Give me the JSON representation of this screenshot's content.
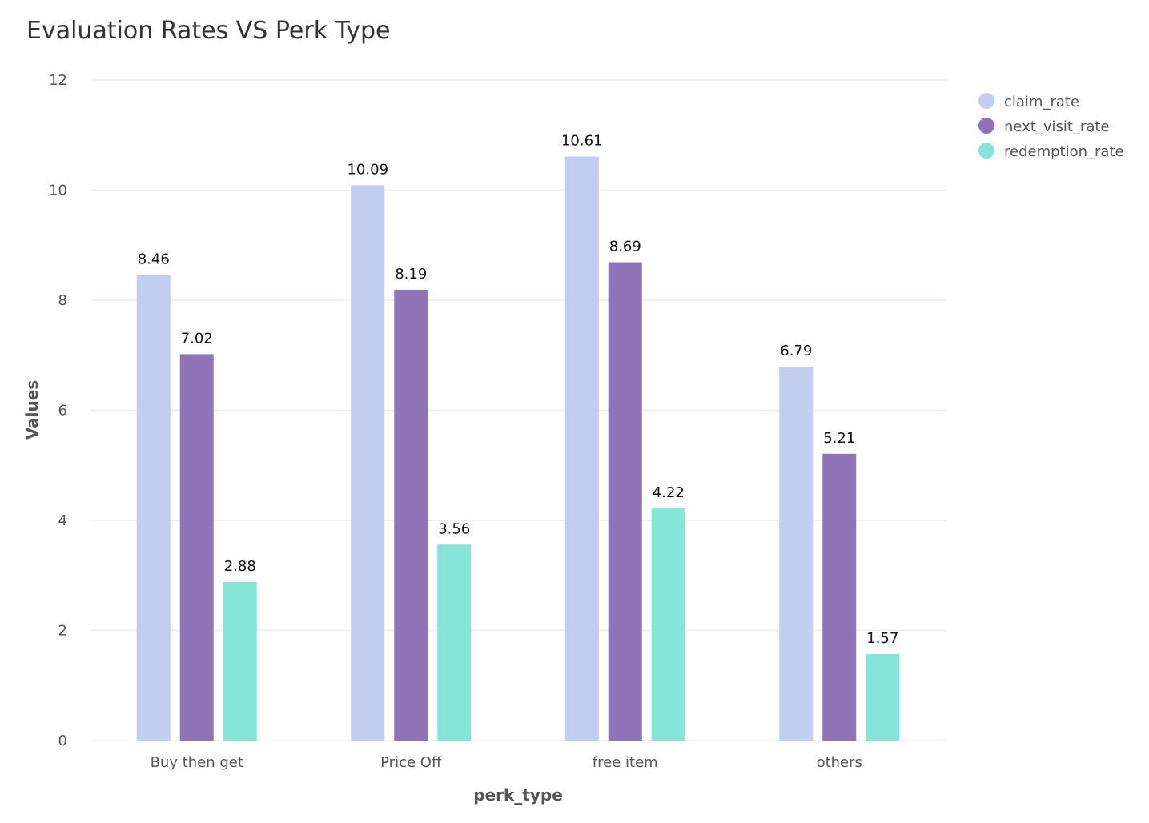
{
  "chart_data": {
    "type": "bar",
    "title": "Evaluation Rates VS Perk Type",
    "xlabel": "perk_type",
    "ylabel": "Values",
    "ylim": [
      0,
      12
    ],
    "yticks": [
      0,
      2,
      4,
      6,
      8,
      10,
      12
    ],
    "grid": true,
    "legend_position": "top-right",
    "categories": [
      "Buy then get",
      "Price Off",
      "free item",
      "others"
    ],
    "series": [
      {
        "name": "claim_rate",
        "color": "#c3cdf0",
        "values": [
          8.46,
          10.09,
          10.61,
          6.79
        ],
        "labels": [
          "8.46",
          "10.09",
          "10.61",
          "6.79"
        ]
      },
      {
        "name": "next_visit_rate",
        "color": "#8f75b7",
        "values": [
          7.02,
          8.19,
          8.69,
          5.21
        ],
        "labels": [
          "7.02",
          "8.19",
          "8.69",
          "5.21"
        ]
      },
      {
        "name": "redemption_rate",
        "color": "#85e5d8",
        "values": [
          2.88,
          3.56,
          4.22,
          1.57
        ],
        "labels": [
          "2.88",
          "3.56",
          "4.22",
          "1.57"
        ]
      }
    ]
  }
}
